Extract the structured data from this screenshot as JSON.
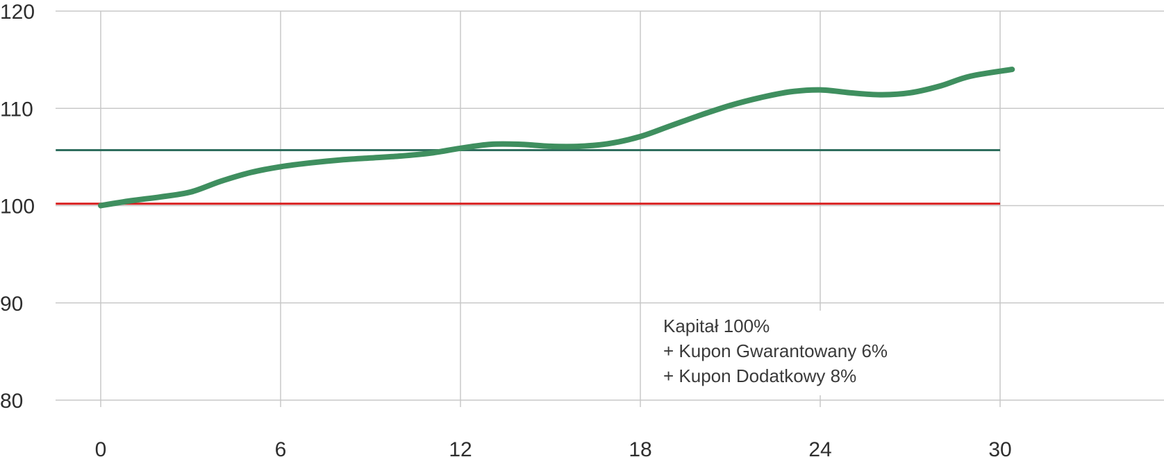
{
  "chart_data": {
    "type": "line",
    "title": "",
    "xlabel": "",
    "ylabel": "",
    "xlim": [
      -2.5,
      35.5
    ],
    "ylim": [
      80,
      120
    ],
    "x_ticks": [
      0,
      6,
      12,
      18,
      24,
      30
    ],
    "x_tick_labels": [
      "0",
      "6",
      "12",
      "18",
      "24",
      "30"
    ],
    "y_ticks": [
      80,
      90,
      100,
      110,
      120
    ],
    "y_tick_labels": [
      "80",
      "90",
      "100",
      "110",
      "120"
    ],
    "grid": true,
    "series": [
      {
        "color": "#3f8f5f",
        "x": [
          0,
          1,
          2,
          3,
          4,
          5,
          6,
          7,
          8,
          9,
          10,
          11,
          12,
          13,
          14,
          15,
          16,
          17,
          18,
          19,
          20,
          21,
          22,
          23,
          24,
          25,
          26,
          27,
          28,
          29,
          30.4
        ],
        "y": [
          100.0,
          100.5,
          100.9,
          101.4,
          102.5,
          103.4,
          104.0,
          104.4,
          104.7,
          104.9,
          105.1,
          105.4,
          105.9,
          106.3,
          106.3,
          106.1,
          106.1,
          106.4,
          107.1,
          108.2,
          109.3,
          110.3,
          111.1,
          111.7,
          111.9,
          111.6,
          111.4,
          111.6,
          112.3,
          113.3,
          114.0
        ]
      }
    ],
    "reference_lines": [
      {
        "y": 105.7,
        "x_range": [
          -1.5,
          30
        ],
        "color": "#2f6e5e"
      },
      {
        "y": 100.2,
        "x_range": [
          -1.5,
          30
        ],
        "color": "#d81e1e"
      }
    ],
    "annotation": {
      "lines": [
        "Kapitał 100%",
        "+ Kupon Gwarantowany 6%",
        "+ Kupon Dodatkowy 8%"
      ]
    }
  },
  "colors": {
    "grid": "#c8c8c8",
    "main_line": "#3f8f5f",
    "guarantee_line": "#2f6e5e",
    "capital_line": "#d81e1e"
  }
}
